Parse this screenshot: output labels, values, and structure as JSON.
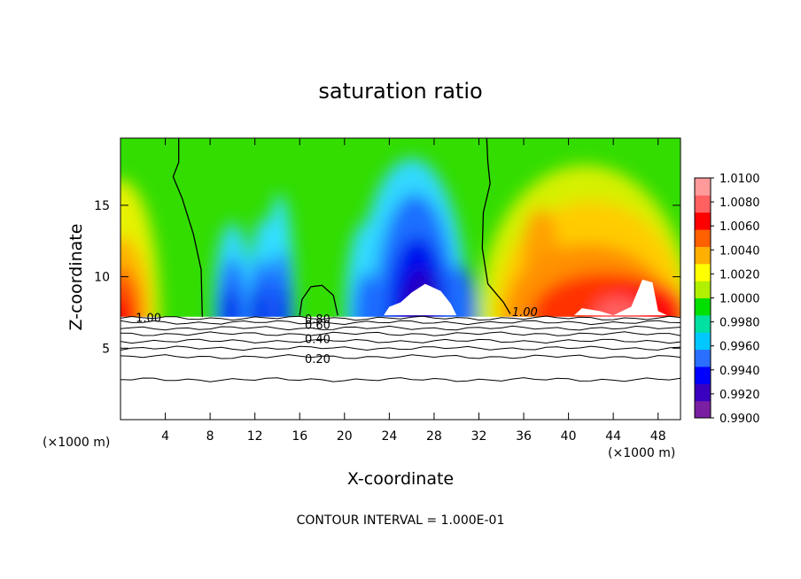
{
  "chart_data": {
    "type": "heatmap",
    "title": "saturation ratio",
    "xlabel": "X-coordinate",
    "ylabel": "Z-coordinate",
    "x_unit_label": "(×1000 m)",
    "x_unit_label_right": "(×1000 m)",
    "footer": "CONTOUR INTERVAL = 1.000E-01",
    "xlim": [
      0,
      50
    ],
    "ylim": [
      0,
      19.7
    ],
    "x_ticks": [
      4,
      8,
      12,
      16,
      20,
      24,
      28,
      32,
      36,
      40,
      44,
      48
    ],
    "x_tick_labels": [
      "4",
      "8",
      "12",
      "16",
      "20",
      "24",
      "28",
      "32",
      "36",
      "40",
      "44",
      "48"
    ],
    "y_ticks": [
      5,
      10,
      15
    ],
    "y_tick_labels": [
      "5",
      "10",
      "15"
    ],
    "colorbar": {
      "min": 0.99,
      "max": 1.01,
      "tick_values": [
        0.99,
        0.992,
        0.994,
        0.996,
        0.998,
        1.0,
        1.002,
        1.004,
        1.006,
        1.008,
        1.01
      ],
      "tick_labels": [
        "0.9900",
        "0.9920",
        "0.9940",
        "0.9960",
        "0.9980",
        "1.0000",
        "1.0020",
        "1.0040",
        "1.0060",
        "1.0080",
        "1.0100"
      ],
      "colors": [
        "#7a1fa2",
        "#3a00c0",
        "#0000ff",
        "#2a6fff",
        "#00c8ff",
        "#00e0a0",
        "#00e000",
        "#b0f000",
        "#ffff00",
        "#ffb000",
        "#ff6000",
        "#ff0000",
        "#ff6060",
        "#ff9a9a"
      ]
    },
    "contour_levels": [
      0.2,
      0.4,
      0.6,
      0.8,
      1.0
    ],
    "contour_labels": [
      {
        "text": "1.00",
        "x": 2.5,
        "z": 7.1
      },
      {
        "text": "0.80",
        "x": 17.6,
        "z": 7.0
      },
      {
        "text": "0.60",
        "x": 17.6,
        "z": 6.6
      },
      {
        "text": "0.40",
        "x": 17.6,
        "z": 5.6
      },
      {
        "text": "0.20",
        "x": 17.6,
        "z": 4.2
      },
      {
        "text": "1.00",
        "x": 36.1,
        "z": 7.5
      }
    ],
    "contour_lines_z": [
      7.1,
      6.8,
      6.4,
      6.0,
      5.5,
      5.0,
      4.4,
      2.8
    ],
    "saturation_curves": [
      {
        "name": "left",
        "points": [
          [
            5.2,
            19.7
          ],
          [
            5.2,
            18.0
          ],
          [
            4.7,
            17.0
          ],
          [
            5.5,
            15.5
          ],
          [
            6.5,
            13.0
          ],
          [
            7.2,
            10.5
          ],
          [
            7.3,
            7.2
          ]
        ]
      },
      {
        "name": "right",
        "points": [
          [
            32.7,
            19.7
          ],
          [
            32.8,
            18.0
          ],
          [
            33.0,
            16.5
          ],
          [
            32.4,
            14.5
          ],
          [
            32.3,
            12.0
          ],
          [
            32.8,
            9.5
          ],
          [
            34.2,
            8.2
          ],
          [
            34.8,
            7.4
          ]
        ]
      },
      {
        "name": "dome",
        "points": [
          [
            16.0,
            7.3
          ],
          [
            16.2,
            8.4
          ],
          [
            17.0,
            9.3
          ],
          [
            18.0,
            9.4
          ],
          [
            19.0,
            8.7
          ],
          [
            19.4,
            7.3
          ]
        ]
      }
    ]
  }
}
